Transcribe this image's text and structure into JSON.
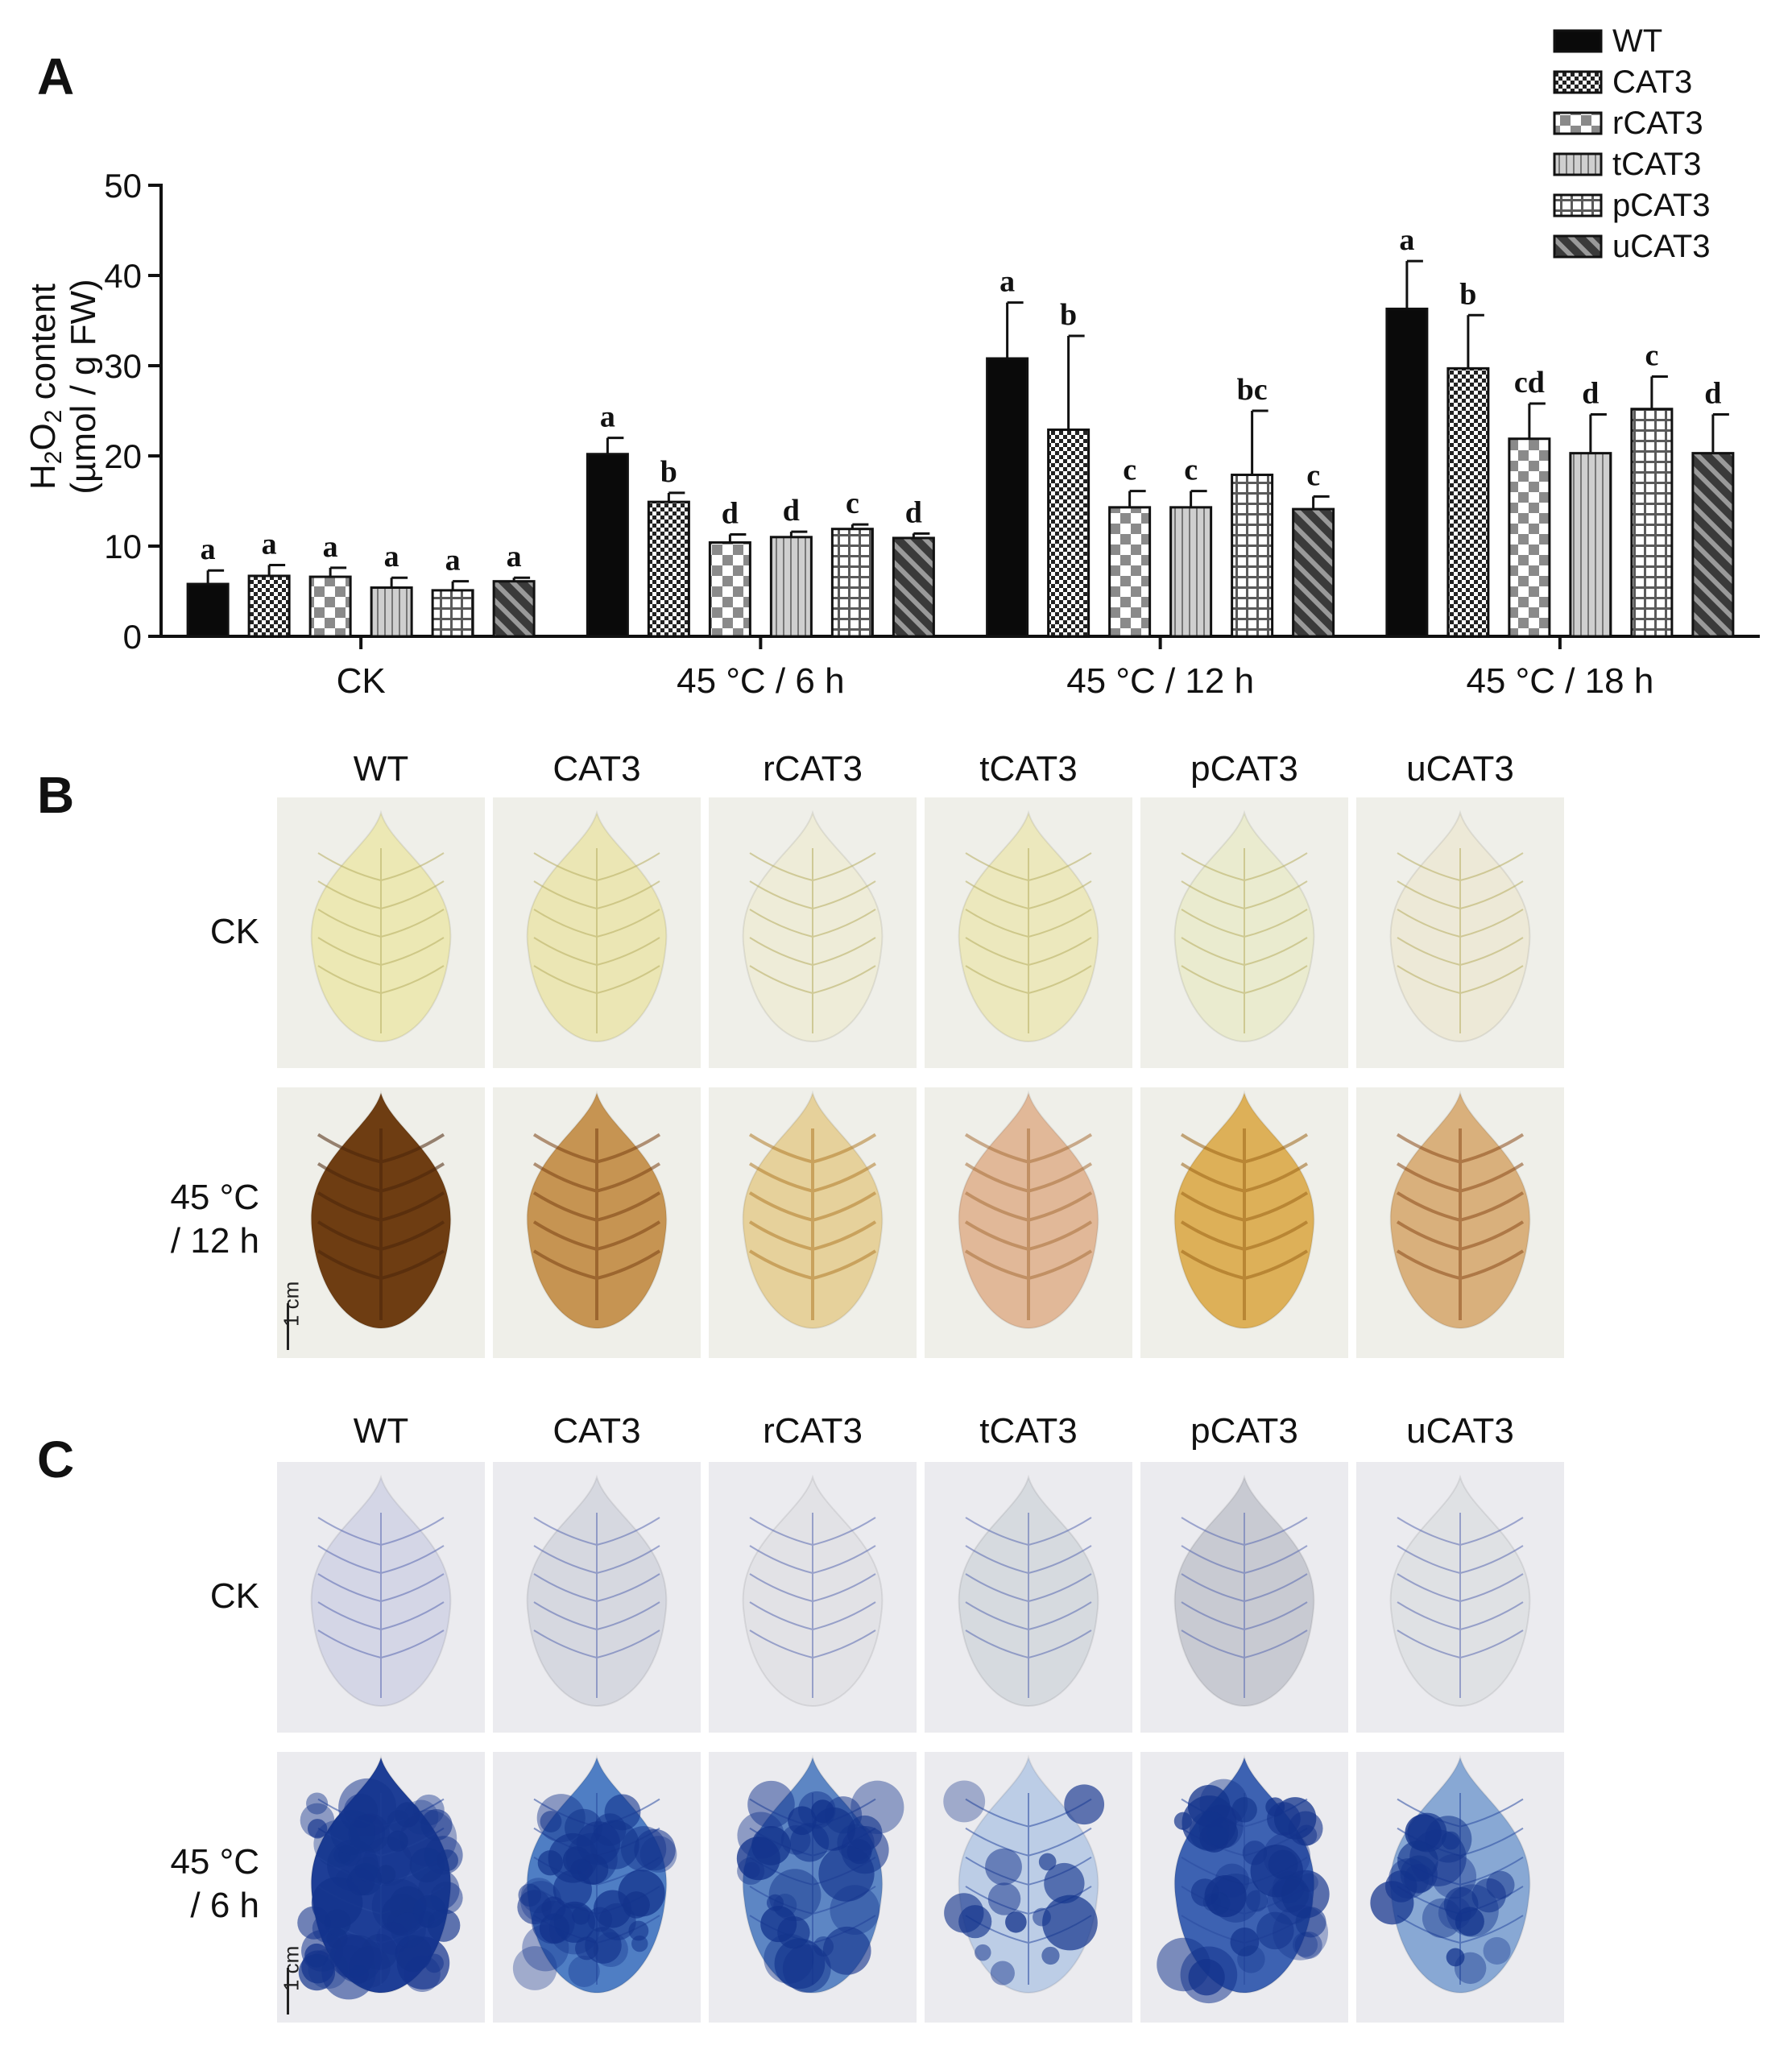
{
  "panels": {
    "a": "A",
    "b": "B",
    "c": "C"
  },
  "chart_data": {
    "type": "bar",
    "ylabel_line1": "H2O2 content",
    "ylabel_line2": "(µmol / g FW)",
    "ylim": [
      0,
      50
    ],
    "yticks": [
      0,
      10,
      20,
      30,
      40,
      50
    ],
    "categories": [
      "CK",
      "45 °C / 6 h",
      "45 °C / 12 h",
      "45 °C / 18 h"
    ],
    "legend_placement": "top-right",
    "series": [
      {
        "name": "WT",
        "pattern": "solid",
        "values": [
          5.8,
          20.2,
          30.8,
          36.3
        ],
        "errors": [
          1.5,
          1.8,
          6.2,
          5.3
        ],
        "letters": [
          "a",
          "a",
          "a",
          "a"
        ]
      },
      {
        "name": "CAT3",
        "pattern": "check",
        "values": [
          6.7,
          14.9,
          22.9,
          29.7
        ],
        "errors": [
          1.2,
          1.0,
          10.4,
          5.9
        ],
        "letters": [
          "a",
          "b",
          "b",
          "b"
        ]
      },
      {
        "name": "rCAT3",
        "pattern": "bigcheck",
        "values": [
          6.6,
          10.4,
          14.3,
          21.9
        ],
        "errors": [
          1.0,
          0.9,
          1.8,
          3.9
        ],
        "letters": [
          "a",
          "d",
          "c",
          "cd"
        ]
      },
      {
        "name": "tCAT3",
        "pattern": "vlines",
        "values": [
          5.4,
          11.0,
          14.3,
          20.3
        ],
        "errors": [
          1.1,
          0.6,
          1.8,
          4.3
        ],
        "letters": [
          "a",
          "d",
          "c",
          "d"
        ]
      },
      {
        "name": "pCAT3",
        "pattern": "grid",
        "values": [
          5.1,
          11.9,
          17.9,
          25.2
        ],
        "errors": [
          1.0,
          0.5,
          7.1,
          3.6
        ],
        "letters": [
          "a",
          "c",
          "bc",
          "c"
        ]
      },
      {
        "name": "uCAT3",
        "pattern": "diag",
        "values": [
          6.1,
          10.9,
          14.1,
          20.3
        ],
        "errors": [
          0.4,
          0.5,
          1.4,
          4.3
        ],
        "letters": [
          "a",
          "d",
          "c",
          "d"
        ]
      }
    ]
  },
  "panel_b": {
    "columns": [
      "WT",
      "CAT3",
      "rCAT3",
      "tCAT3",
      "pCAT3",
      "uCAT3"
    ],
    "rows": [
      "CK",
      "45 °C\n/ 12 h"
    ],
    "scale_bar": "1 cm"
  },
  "panel_c": {
    "columns": [
      "WT",
      "CAT3",
      "rCAT3",
      "tCAT3",
      "pCAT3",
      "uCAT3"
    ],
    "rows": [
      "CK",
      "45 °C\n/ 6 h"
    ],
    "scale_bar": "1 cm"
  },
  "colors": {
    "dab_background": "#efefe9",
    "nbt_background": "#ebebef",
    "dab_ck_leaf": [
      "#ece8b4",
      "#ebe6b4",
      "#eeecd8",
      "#ece8bd",
      "#eaebcf",
      "#ede9d7"
    ],
    "dab_heat_leaf": [
      "#6e3d12",
      "#c69452",
      "#e6d19b",
      "#e1b898",
      "#ddb058",
      "#d9b07c"
    ],
    "dab_heat_veins": [
      "#4a240a",
      "#7a3f12",
      "#b07b2a",
      "#a8703a",
      "#9a6518",
      "#8a4a1a"
    ],
    "nbt_ck_leaf": [
      "#d4d6e6",
      "#d6d8e0",
      "#e2e2e6",
      "#d6dadf",
      "#c8cad2",
      "#dfe1e4"
    ],
    "nbt_heat_leaf": [
      "#1e3e96",
      "#4f7ec4",
      "#5d86c4",
      "#bccde6",
      "#3d62b2",
      "#88a8d4"
    ],
    "nbt_blue_dark": "#13338c"
  }
}
